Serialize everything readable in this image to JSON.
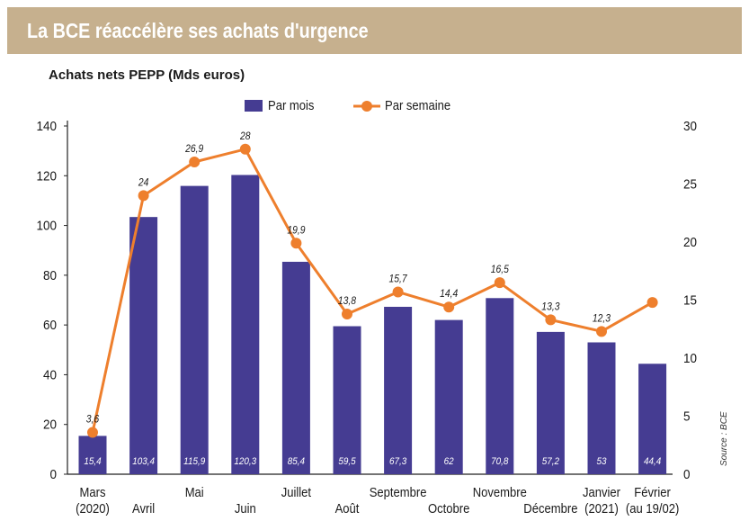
{
  "header": {
    "title": "La BCE réaccélère ses achats d'urgence"
  },
  "subtitle": "Achats nets PEPP (Mds euros)",
  "source": "Source : BCE",
  "colors": {
    "banner": "#c6b08e",
    "bar": "#453c92",
    "line": "#ee7f2d"
  },
  "chart_data": {
    "type": "bar",
    "categories": [
      [
        "Mars",
        "(2020)"
      ],
      [
        "Avril"
      ],
      [
        "Mai"
      ],
      [
        "Juin"
      ],
      [
        "Juillet"
      ],
      [
        "Août"
      ],
      [
        "Septembre"
      ],
      [
        "Octobre"
      ],
      [
        "Novembre"
      ],
      [
        "Décembre"
      ],
      [
        "Janvier",
        "(2021)"
      ],
      [
        "Février",
        "(au 19/02)"
      ]
    ],
    "series": [
      {
        "name": "Par mois",
        "type": "bar",
        "axis": "left",
        "values": [
          15.4,
          103.4,
          115.9,
          120.3,
          85.4,
          59.5,
          67.3,
          62,
          70.8,
          57.2,
          53,
          44.4
        ],
        "labels": [
          "15,4",
          "103,4",
          "115,9",
          "120,3",
          "85,4",
          "59,5",
          "67,3",
          "62",
          "70,8",
          "57,2",
          "53",
          "44,4"
        ]
      },
      {
        "name": "Par semaine",
        "type": "line",
        "axis": "right",
        "values": [
          3.6,
          24,
          26.9,
          28,
          19.9,
          13.8,
          15.7,
          14.4,
          16.5,
          13.3,
          12.3,
          14.8
        ],
        "labels": [
          "3,6",
          "24",
          "26,9",
          "28",
          "19,9",
          "13,8",
          "15,7",
          "14,4",
          "16,5",
          "13,3",
          "12,3",
          ""
        ]
      }
    ],
    "y_left": {
      "min": 0,
      "max": 140,
      "ticks": [
        0,
        20,
        40,
        60,
        80,
        100,
        120,
        140
      ]
    },
    "y_right": {
      "min": 0,
      "max": 30,
      "ticks": [
        0,
        5,
        10,
        15,
        20,
        25,
        30
      ]
    },
    "legend": "top"
  }
}
